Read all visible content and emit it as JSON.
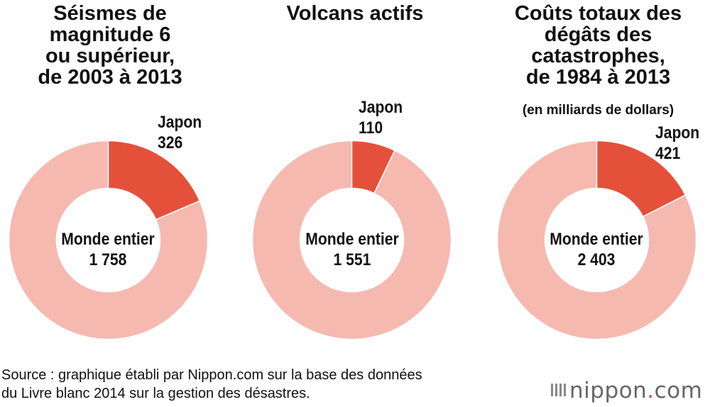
{
  "chart_data": [
    {
      "type": "pie",
      "style": "donut",
      "title": "Séismes de\nmagnitude 6\nou supérieur,\nde 2003 à 2013",
      "subtitle": "",
      "total_label": "Monde entier",
      "total_value_text": "1 758",
      "total": 1758,
      "slice_label": "Japon",
      "slice_value_text": "326",
      "slice_value": 326,
      "colors": {
        "highlight": "#e5503a",
        "rest": "#f5b9b0"
      }
    },
    {
      "type": "pie",
      "style": "donut",
      "title": "Volcans actifs",
      "subtitle": "",
      "total_label": "Monde entier",
      "total_value_text": "1 551",
      "total": 1551,
      "slice_label": "Japon",
      "slice_value_text": "110",
      "slice_value": 110,
      "colors": {
        "highlight": "#e5503a",
        "rest": "#f5b9b0"
      }
    },
    {
      "type": "pie",
      "style": "donut",
      "title": "Coûts totaux des\ndégâts des\ncatastrophes,\nde 1984 à 2013",
      "subtitle": "(en milliards de dollars)",
      "total_label": "Monde entier",
      "total_value_text": "2 403",
      "total": 2403,
      "slice_label": "Japon",
      "slice_value_text": "421",
      "slice_value": 421,
      "colors": {
        "highlight": "#e5503a",
        "rest": "#f5b9b0"
      }
    }
  ],
  "source": {
    "line1": "Source : graphique établi par Nippon.com sur la base des données",
    "line2": "du Livre blanc 2014 sur la gestion des désastres."
  },
  "logo": {
    "name": "nippon",
    "dot": ".",
    "suffix": "com"
  }
}
